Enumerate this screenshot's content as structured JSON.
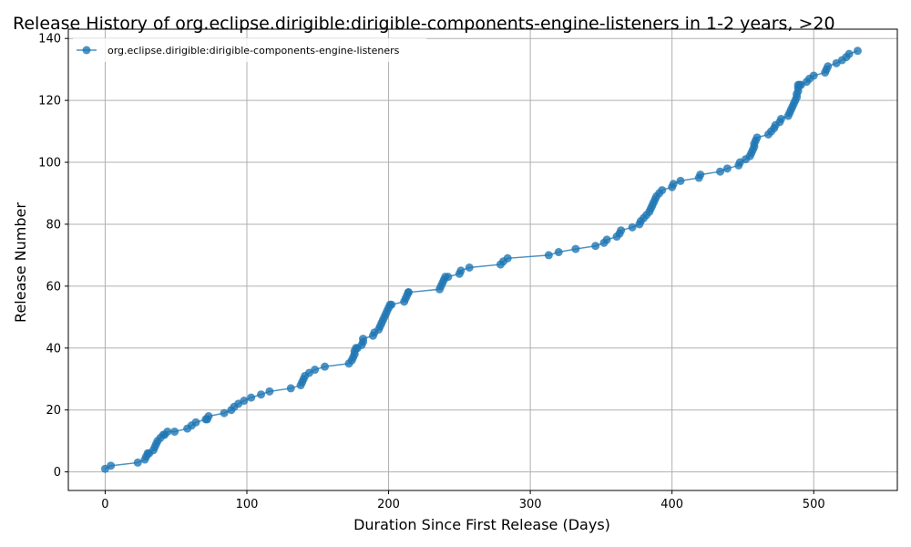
{
  "chart_data": {
    "type": "line",
    "title": "Release History of org.eclipse.dirigible:dirigible-components-engine-listeners in 1-2 years, >20",
    "xlabel": "Duration Since First Release (Days)",
    "ylabel": "Release Number",
    "xlim": [
      -26,
      559
    ],
    "ylim": [
      -6,
      143
    ],
    "xticks": [
      0,
      100,
      200,
      300,
      400,
      500
    ],
    "yticks": [
      0,
      20,
      40,
      60,
      80,
      100,
      120,
      140
    ],
    "grid": true,
    "legend_position": "top-left",
    "colors": {
      "series": "#1f77b4",
      "grid": "#b0b0b0"
    },
    "series": [
      {
        "name": "org.eclipse.dirigible:dirigible-components-engine-listeners",
        "x": [
          0,
          4,
          23,
          28,
          29,
          30,
          31,
          34,
          35,
          36,
          37,
          39,
          41,
          42,
          44,
          49,
          58,
          61,
          64,
          71,
          72,
          73,
          84,
          89,
          91,
          94,
          98,
          103,
          110,
          116,
          131,
          138,
          139,
          140,
          141,
          144,
          148,
          155,
          172,
          174,
          175,
          176,
          176,
          177,
          178,
          181,
          182,
          182,
          189,
          190,
          193,
          194,
          195,
          196,
          197,
          198,
          199,
          200,
          201,
          202,
          211,
          212,
          213,
          214,
          214,
          236,
          237,
          238,
          239,
          240,
          242,
          250,
          251,
          257,
          279,
          281,
          284,
          313,
          320,
          332,
          346,
          352,
          354,
          361,
          363,
          364,
          372,
          377,
          378,
          380,
          382,
          384,
          385,
          386,
          387,
          388,
          389,
          391,
          393,
          400,
          401,
          406,
          419,
          420,
          434,
          439,
          447,
          448,
          452,
          455,
          456,
          457,
          458,
          458,
          459,
          460,
          468,
          470,
          472,
          473,
          476,
          477,
          482,
          483,
          484,
          485,
          486,
          487,
          488,
          488,
          489,
          489,
          489,
          490,
          491,
          495,
          497,
          500,
          508,
          509,
          510,
          516,
          520,
          523,
          525,
          531
        ],
        "y": [
          1,
          2,
          3,
          4,
          5,
          6,
          6,
          7,
          8,
          9,
          10,
          11,
          12,
          12,
          13,
          13,
          14,
          15,
          16,
          17,
          17,
          18,
          19,
          20,
          21,
          22,
          23,
          24,
          25,
          26,
          27,
          28,
          29,
          30,
          31,
          32,
          33,
          34,
          35,
          36,
          37,
          38,
          39,
          40,
          40,
          41,
          42,
          43,
          44,
          45,
          46,
          47,
          48,
          49,
          50,
          51,
          52,
          53,
          54,
          54,
          55,
          56,
          57,
          58,
          58,
          59,
          60,
          61,
          62,
          63,
          63,
          64,
          65,
          66,
          67,
          68,
          69,
          70,
          71,
          72,
          73,
          74,
          75,
          76,
          77,
          78,
          79,
          80,
          81,
          82,
          83,
          84,
          85,
          86,
          87,
          88,
          89,
          90,
          91,
          92,
          93,
          94,
          95,
          96,
          97,
          98,
          99,
          100,
          101,
          102,
          103,
          104,
          105,
          106,
          107,
          108,
          109,
          110,
          111,
          112,
          113,
          114,
          115,
          116,
          117,
          118,
          119,
          120,
          121,
          122,
          123,
          124,
          125,
          125,
          125,
          126,
          127,
          128,
          129,
          130,
          131,
          132,
          133,
          134,
          135,
          136
        ]
      }
    ]
  }
}
